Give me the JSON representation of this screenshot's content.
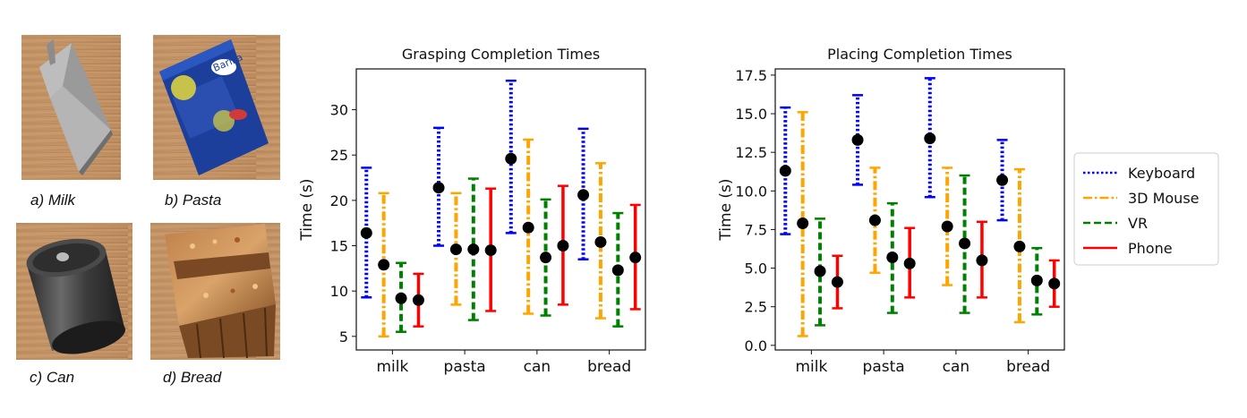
{
  "photos": [
    {
      "caption": "a) Milk",
      "object": "milk-carton"
    },
    {
      "caption": "b) Pasta",
      "object": "pasta-box"
    },
    {
      "caption": "c) Can",
      "object": "can"
    },
    {
      "caption": "d) Bread",
      "object": "bread"
    }
  ],
  "legend": [
    {
      "label": "Keyboard",
      "color": "#0000ff",
      "style": "dotted"
    },
    {
      "label": "3D Mouse",
      "color": "#ffa500",
      "style": "dashdot"
    },
    {
      "label": "VR",
      "color": "#008000",
      "style": "dashed"
    },
    {
      "label": "Phone",
      "color": "#ff0000",
      "style": "solid"
    }
  ],
  "chart_data": [
    {
      "type": "errorbar",
      "title": "Grasping Completion Times",
      "xlabel": "",
      "ylabel": "Time (s)",
      "ylim": [
        3.5,
        34.5
      ],
      "yticks": [
        5,
        10,
        15,
        20,
        25,
        30
      ],
      "categories": [
        "milk",
        "pasta",
        "can",
        "bread"
      ],
      "series": [
        {
          "name": "Keyboard",
          "means": [
            16.4,
            21.4,
            24.6,
            20.6
          ],
          "lows": [
            9.3,
            15.0,
            16.4,
            13.5
          ],
          "highs": [
            23.6,
            28.0,
            33.2,
            27.9
          ]
        },
        {
          "name": "3D Mouse",
          "means": [
            12.9,
            14.6,
            17.0,
            15.4
          ],
          "lows": [
            5.0,
            8.5,
            7.5,
            7.0
          ],
          "highs": [
            20.8,
            20.8,
            26.7,
            24.1
          ]
        },
        {
          "name": "VR",
          "means": [
            9.2,
            14.6,
            13.7,
            12.3
          ],
          "lows": [
            5.5,
            6.8,
            7.3,
            6.1
          ],
          "highs": [
            13.1,
            22.4,
            20.1,
            18.6
          ]
        },
        {
          "name": "Phone",
          "means": [
            9.0,
            14.5,
            15.0,
            13.7
          ],
          "lows": [
            6.1,
            7.8,
            8.5,
            8.0
          ],
          "highs": [
            11.9,
            21.3,
            21.6,
            19.5
          ]
        }
      ]
    },
    {
      "type": "errorbar",
      "title": "Placing Completion Times",
      "xlabel": "",
      "ylabel": "Time (s)",
      "ylim": [
        -0.3,
        17.9
      ],
      "yticks": [
        0.0,
        2.5,
        5.0,
        7.5,
        10.0,
        12.5,
        15.0,
        17.5
      ],
      "ytick_labels": [
        "0.0",
        "2.5",
        "5.0",
        "7.5",
        "10.0",
        "12.5",
        "15.0",
        "17.5"
      ],
      "categories": [
        "milk",
        "pasta",
        "can",
        "bread"
      ],
      "series": [
        {
          "name": "Keyboard",
          "means": [
            11.3,
            13.3,
            13.4,
            10.7
          ],
          "lows": [
            7.2,
            10.4,
            9.6,
            8.1
          ],
          "highs": [
            15.4,
            16.2,
            17.3,
            13.3
          ]
        },
        {
          "name": "3D Mouse",
          "means": [
            7.9,
            8.1,
            7.7,
            6.4
          ],
          "lows": [
            0.6,
            4.7,
            3.9,
            1.5
          ],
          "highs": [
            15.1,
            11.5,
            11.5,
            11.4
          ]
        },
        {
          "name": "VR",
          "means": [
            4.8,
            5.7,
            6.6,
            4.2
          ],
          "lows": [
            1.3,
            2.1,
            2.1,
            2.0
          ],
          "highs": [
            8.2,
            9.2,
            11.0,
            6.3
          ]
        },
        {
          "name": "Phone",
          "means": [
            4.1,
            5.3,
            5.5,
            4.0
          ],
          "lows": [
            2.4,
            3.1,
            3.1,
            2.5
          ],
          "highs": [
            5.8,
            7.6,
            8.0,
            5.5
          ]
        }
      ]
    }
  ]
}
